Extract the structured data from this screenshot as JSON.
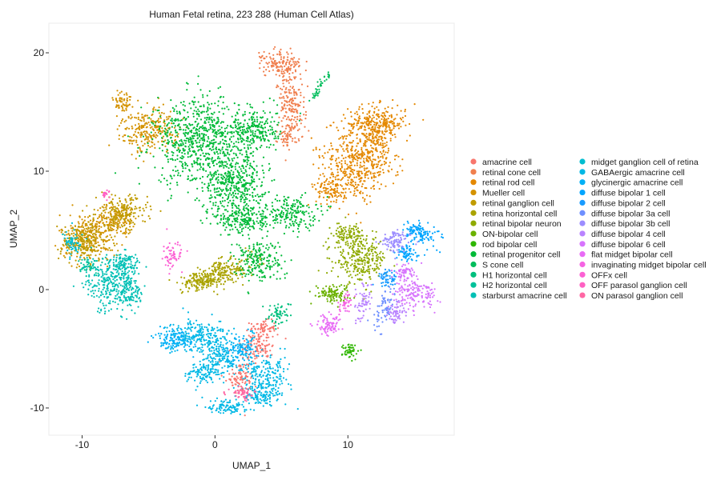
{
  "chart_data": {
    "type": "scatter",
    "title": "Human Fetal retina, 223 288 (Human Cell Atlas)",
    "xlabel": "UMAP_1",
    "ylabel": "UMAP_2",
    "xlim": [
      -12.5,
      18
    ],
    "ylim": [
      -12.3,
      22.5
    ],
    "xticks": [
      -10,
      0,
      10
    ],
    "yticks": [
      -10,
      0,
      10,
      20
    ],
    "grid": false,
    "legend": "right",
    "series": [
      {
        "name": "amacrine cell",
        "color": "#F8766D",
        "blobs": [
          [
            3.2,
            -4.8,
            1.3,
            1.1,
            30,
            120
          ],
          [
            2.0,
            -7.5,
            0.9,
            1.2,
            20,
            90
          ],
          [
            3.6,
            -3.2,
            0.8,
            0.5,
            0,
            60
          ]
        ]
      },
      {
        "name": "retinal cone cell",
        "color": "#F07F4E",
        "blobs": [
          [
            5.0,
            19.0,
            1.3,
            1.0,
            -30,
            160
          ],
          [
            5.8,
            15.5,
            0.8,
            1.8,
            10,
            160
          ],
          [
            5.5,
            13.0,
            0.6,
            0.9,
            0,
            60
          ]
        ]
      },
      {
        "name": "retinal rod cell",
        "color": "#E48800",
        "blobs": [
          [
            11.0,
            11.0,
            2.2,
            2.8,
            -20,
            520
          ],
          [
            12.2,
            14.0,
            1.8,
            1.3,
            0,
            260
          ],
          [
            8.8,
            8.6,
            1.0,
            1.3,
            0,
            120
          ]
        ]
      },
      {
        "name": "Mueller cell",
        "color": "#D49200",
        "blobs": [
          [
            -5.0,
            13.5,
            1.8,
            1.5,
            20,
            260
          ],
          [
            -7.0,
            15.8,
            0.6,
            1.0,
            0,
            60
          ],
          [
            -9.5,
            4.5,
            1.8,
            1.6,
            0,
            240
          ],
          [
            -7.5,
            6.0,
            1.2,
            1.0,
            0,
            120
          ]
        ]
      },
      {
        "name": "retinal ganglion cell",
        "color": "#C09B00",
        "blobs": [
          [
            -9.8,
            4.0,
            1.6,
            1.4,
            0,
            220
          ],
          [
            -7.0,
            6.5,
            1.6,
            1.2,
            0,
            200
          ]
        ]
      },
      {
        "name": "retina horizontal cell",
        "color": "#AAA300",
        "blobs": [
          [
            0.5,
            1.4,
            2.2,
            0.8,
            20,
            230
          ],
          [
            -1.2,
            0.6,
            1.2,
            0.6,
            10,
            120
          ]
        ]
      },
      {
        "name": "retinal bipolar neuron",
        "color": "#8FAA00",
        "blobs": [
          [
            11.0,
            2.5,
            1.6,
            1.6,
            0,
            260
          ],
          [
            10.0,
            4.5,
            1.0,
            1.0,
            0,
            120
          ]
        ]
      },
      {
        "name": "ON-bipolar cell",
        "color": "#6BB100",
        "blobs": [
          [
            8.8,
            -0.3,
            1.1,
            0.6,
            0,
            110
          ]
        ]
      },
      {
        "name": "rod bipolar cell",
        "color": "#2EB600",
        "blobs": [
          [
            10.2,
            -5.2,
            0.5,
            0.6,
            0,
            50
          ]
        ]
      },
      {
        "name": "retinal progenitor cell",
        "color": "#00BA38",
        "blobs": [
          [
            -1.0,
            12.5,
            3.0,
            3.0,
            0,
            760
          ],
          [
            1.5,
            9.0,
            2.0,
            1.8,
            0,
            360
          ],
          [
            3.0,
            13.5,
            1.4,
            1.6,
            0,
            220
          ],
          [
            2.0,
            6.0,
            1.8,
            1.2,
            0,
            220
          ],
          [
            5.5,
            6.5,
            1.8,
            1.2,
            0,
            200
          ],
          [
            3.2,
            2.5,
            1.6,
            1.5,
            0,
            200
          ]
        ]
      },
      {
        "name": "S cone cell",
        "color": "#00BD5C",
        "blobs": [
          [
            7.8,
            17.0,
            0.2,
            1.5,
            -30,
            40
          ]
        ]
      },
      {
        "name": "H1 horizontal cell",
        "color": "#00BF7D",
        "blobs": [
          [
            4.8,
            -2.0,
            0.8,
            0.8,
            0,
            60
          ]
        ]
      },
      {
        "name": "H2 horizontal cell",
        "color": "#00C19A",
        "blobs": [
          [
            -9.5,
            2.0,
            0.8,
            0.6,
            0,
            50
          ]
        ]
      },
      {
        "name": "starburst amacrine cell",
        "color": "#00C0B5",
        "blobs": [
          [
            -8.0,
            0.5,
            1.5,
            2.0,
            0,
            260
          ],
          [
            -6.3,
            0.0,
            0.8,
            1.5,
            0,
            120
          ],
          [
            -6.8,
            2.2,
            1.0,
            0.7,
            0,
            90
          ]
        ]
      },
      {
        "name": "midget ganglion cell of retina",
        "color": "#00BDD0",
        "blobs": [
          [
            -10.6,
            3.8,
            0.6,
            0.8,
            0,
            60
          ]
        ]
      },
      {
        "name": "GABAergic amacrine cell",
        "color": "#00B8E5",
        "blobs": [
          [
            -1.0,
            -4.0,
            2.0,
            1.2,
            0,
            260
          ],
          [
            3.8,
            -7.5,
            1.5,
            1.5,
            0,
            220
          ],
          [
            -0.8,
            -7.0,
            1.2,
            0.8,
            0,
            120
          ],
          [
            0.5,
            -5.8,
            1.0,
            1.0,
            0,
            110
          ],
          [
            1.0,
            -9.8,
            1.2,
            0.6,
            0,
            100
          ],
          [
            3.5,
            -9.0,
            1.0,
            0.6,
            0,
            80
          ]
        ]
      },
      {
        "name": "glycinergic amacrine cell",
        "color": "#00B0F6",
        "blobs": [
          [
            -3.0,
            -4.2,
            1.2,
            0.8,
            0,
            130
          ],
          [
            2.0,
            -5.0,
            1.0,
            1.0,
            0,
            110
          ]
        ]
      },
      {
        "name": "diffuse bipolar 1 cell",
        "color": "#00A5FF",
        "blobs": [
          [
            15.5,
            4.8,
            1.3,
            0.7,
            -20,
            120
          ],
          [
            14.5,
            3.0,
            0.8,
            0.6,
            0,
            70
          ]
        ]
      },
      {
        "name": "diffuse bipolar 2 cell",
        "color": "#189BFF",
        "blobs": [
          [
            13.0,
            1.0,
            0.6,
            0.6,
            0,
            60
          ]
        ]
      },
      {
        "name": "diffuse bipolar 3a cell",
        "color": "#6E8FFF",
        "blobs": [
          [
            12.8,
            -1.5,
            0.5,
            1.5,
            -15,
            70
          ]
        ]
      },
      {
        "name": "diffuse bipolar 3b cell",
        "color": "#9C8DFF",
        "blobs": [
          [
            13.6,
            4.0,
            0.9,
            0.8,
            0,
            100
          ]
        ]
      },
      {
        "name": "diffuse bipolar 4 cell",
        "color": "#B983FF",
        "blobs": [
          [
            11.2,
            -1.0,
            0.5,
            1.3,
            -10,
            60
          ],
          [
            13.6,
            -2.0,
            0.6,
            1.0,
            -20,
            60
          ]
        ]
      },
      {
        "name": "diffuse bipolar 6 cell",
        "color": "#D774FD",
        "blobs": [
          [
            15.0,
            -0.3,
            1.3,
            1.0,
            -20,
            150
          ],
          [
            14.2,
            1.5,
            0.8,
            0.5,
            0,
            60
          ]
        ]
      },
      {
        "name": "flat midget bipolar cell",
        "color": "#E86BF5",
        "blobs": [
          [
            8.6,
            -3.0,
            0.8,
            0.7,
            20,
            80
          ]
        ]
      },
      {
        "name": "invaginating midget bipolar cell",
        "color": "#F564E3",
        "blobs": [
          [
            9.8,
            -1.2,
            0.4,
            0.8,
            -20,
            40
          ]
        ]
      },
      {
        "name": "OFFx cell",
        "color": "#FC61D4",
        "blobs": [
          [
            -3.2,
            2.8,
            0.6,
            1.0,
            0,
            60
          ]
        ]
      },
      {
        "name": "OFF parasol ganglion cell",
        "color": "#FF61C3",
        "blobs": [
          [
            -8.2,
            8.0,
            0.3,
            0.3,
            0,
            20
          ]
        ]
      },
      {
        "name": "ON parasol ganglion cell",
        "color": "#FF67A4",
        "blobs": [
          [
            2.0,
            -8.8,
            0.8,
            0.5,
            0,
            50
          ]
        ]
      }
    ]
  }
}
